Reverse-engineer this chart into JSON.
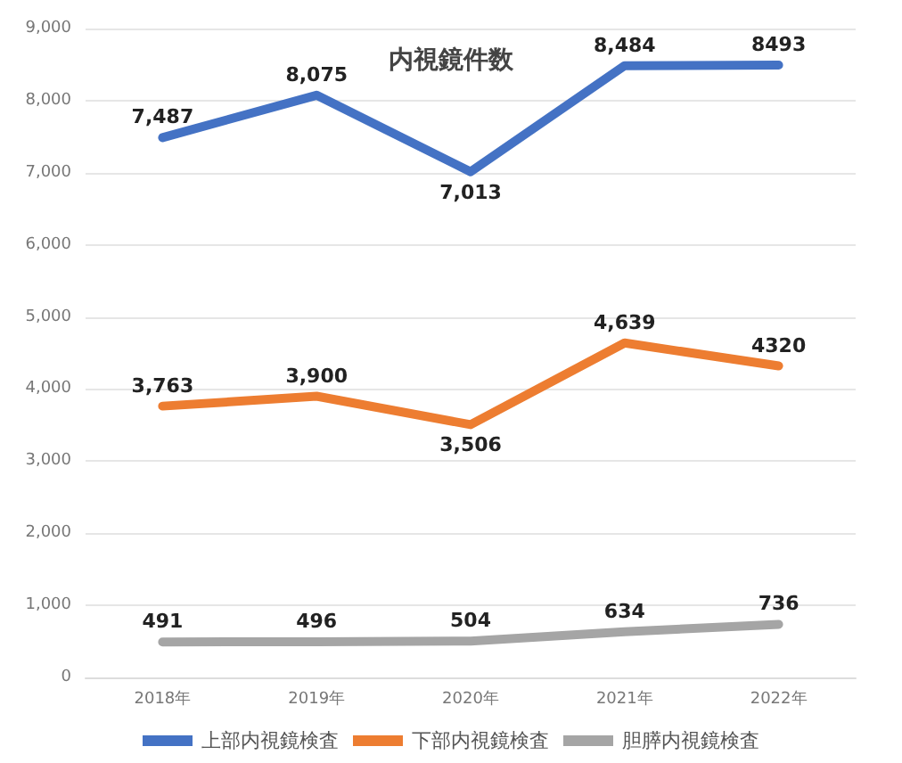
{
  "chart_data": {
    "type": "line",
    "title": "内視鏡件数",
    "categories": [
      "2018年",
      "2019年",
      "2020年",
      "2021年",
      "2022年"
    ],
    "series": [
      {
        "name": "上部内視鏡検査",
        "color": "#4472c4",
        "values": [
          7487,
          8075,
          7013,
          8484,
          8493
        ],
        "value_labels": [
          "7,487",
          "8,075",
          "7,013",
          "8,484",
          "8493"
        ]
      },
      {
        "name": "下部内視鏡検査",
        "color": "#ed7d31",
        "values": [
          3763,
          3900,
          3506,
          4639,
          4320
        ],
        "value_labels": [
          "3,763",
          "3,900",
          "3,506",
          "4,639",
          "4320"
        ]
      },
      {
        "name": "胆膵内視鏡検査",
        "color": "#a5a5a5",
        "values": [
          491,
          496,
          504,
          634,
          736
        ],
        "value_labels": [
          "491",
          "496",
          "504",
          "634",
          "736"
        ]
      }
    ],
    "ylim": [
      0,
      9000
    ],
    "yticks": [
      {
        "value": 0,
        "label": "0"
      },
      {
        "value": 1000,
        "label": "1,000"
      },
      {
        "value": 2000,
        "label": "2,000"
      },
      {
        "value": 3000,
        "label": "3,000"
      },
      {
        "value": 4000,
        "label": "4,000"
      },
      {
        "value": 5000,
        "label": "5,000"
      },
      {
        "value": 6000,
        "label": "6,000"
      },
      {
        "value": 7000,
        "label": "7,000"
      },
      {
        "value": 8000,
        "label": "8,000"
      },
      {
        "value": 9000,
        "label": "9,000"
      }
    ],
    "grid": "y",
    "legend": "bottom",
    "marker": "none",
    "line_style": "solid"
  }
}
